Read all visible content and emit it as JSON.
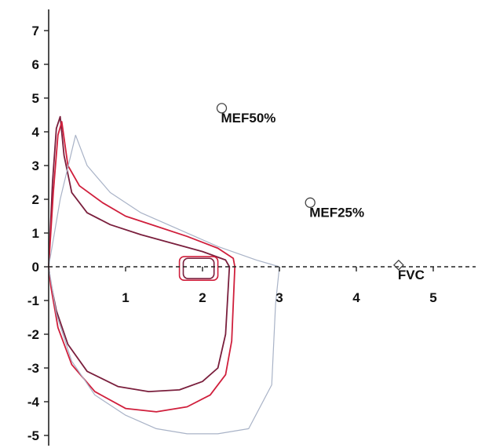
{
  "chart_data": {
    "type": "line",
    "title": "",
    "xlabel": "",
    "ylabel": "",
    "xlim": [
      0,
      5.5
    ],
    "ylim": [
      -5,
      7
    ],
    "x_ticks": [
      "1",
      "2",
      "3",
      "4",
      "5"
    ],
    "x_tick_values": [
      1,
      2,
      3,
      4,
      5
    ],
    "y_ticks": [
      "7",
      "6",
      "5",
      "4",
      "3",
      "2",
      "1",
      "0",
      "-1",
      "-2",
      "-3",
      "-4",
      "-5"
    ],
    "y_tick_values": [
      7,
      6,
      5,
      4,
      3,
      2,
      1,
      0,
      -1,
      -2,
      -3,
      -4,
      -5
    ],
    "grid": false,
    "colors": {
      "loop_dark": "#7a1f3d",
      "loop_red": "#d01f3c",
      "predicted": "#a9b3c7",
      "axis": "#222222",
      "marker": "#444444"
    },
    "markers": [
      {
        "label": "MEF50%",
        "x": 2.25,
        "y": 4.7,
        "shape": "circle"
      },
      {
        "label": "MEF25%",
        "x": 3.4,
        "y": 1.9,
        "shape": "circle"
      },
      {
        "label": "FVC",
        "x": 4.55,
        "y": 0.05,
        "shape": "diamond"
      }
    ],
    "series": [
      {
        "color": "#7a1f3d",
        "x": [
          0.0,
          0.05,
          0.1,
          0.15,
          0.2,
          0.3,
          0.5,
          0.8,
          1.2,
          1.6,
          2.0,
          2.3,
          2.35,
          2.3,
          2.2,
          2.0,
          1.7,
          1.3,
          0.9,
          0.5,
          0.25,
          0.1,
          0.02,
          0.0
        ],
        "y": [
          0.0,
          2.5,
          4.1,
          4.45,
          3.3,
          2.2,
          1.6,
          1.25,
          0.95,
          0.7,
          0.45,
          0.2,
          0.0,
          -2.0,
          -3.0,
          -3.4,
          -3.65,
          -3.7,
          -3.55,
          -3.1,
          -2.3,
          -1.3,
          -0.4,
          0.0
        ]
      },
      {
        "color": "#d01f3c",
        "x": [
          0.0,
          0.06,
          0.12,
          0.17,
          0.25,
          0.4,
          0.7,
          1.0,
          1.4,
          1.8,
          2.2,
          2.4,
          2.42,
          2.38,
          2.3,
          2.1,
          1.8,
          1.4,
          1.0,
          0.6,
          0.3,
          0.12,
          0.03,
          0.0
        ],
        "y": [
          0.0,
          2.2,
          3.9,
          4.3,
          3.0,
          2.4,
          1.9,
          1.5,
          1.2,
          0.9,
          0.55,
          0.25,
          0.0,
          -2.2,
          -3.2,
          -3.8,
          -4.15,
          -4.3,
          -4.2,
          -3.7,
          -2.9,
          -1.8,
          -0.6,
          0.0
        ]
      },
      {
        "color": "#a9b3c7",
        "x": [
          0.0,
          0.15,
          0.35,
          0.5,
          0.8,
          1.2,
          1.7,
          2.2,
          2.7,
          3.0,
          2.95,
          2.9,
          2.6,
          2.2,
          1.8,
          1.4,
          1.0,
          0.6,
          0.3,
          0.1,
          0.0
        ],
        "y": [
          0.0,
          2.0,
          3.9,
          3.0,
          2.2,
          1.6,
          1.1,
          0.6,
          0.2,
          0.0,
          -1.1,
          -3.5,
          -4.8,
          -4.95,
          -4.95,
          -4.8,
          -4.4,
          -3.8,
          -2.8,
          -1.4,
          0.0
        ]
      }
    ],
    "small_loops": [
      {
        "color": "#d01f3c",
        "x": [
          1.7,
          2.2
        ],
        "y": [
          -0.4,
          0.3
        ]
      },
      {
        "color": "#7a1f3d",
        "x": [
          1.75,
          2.15
        ],
        "y": [
          -0.35,
          0.25
        ]
      }
    ]
  }
}
